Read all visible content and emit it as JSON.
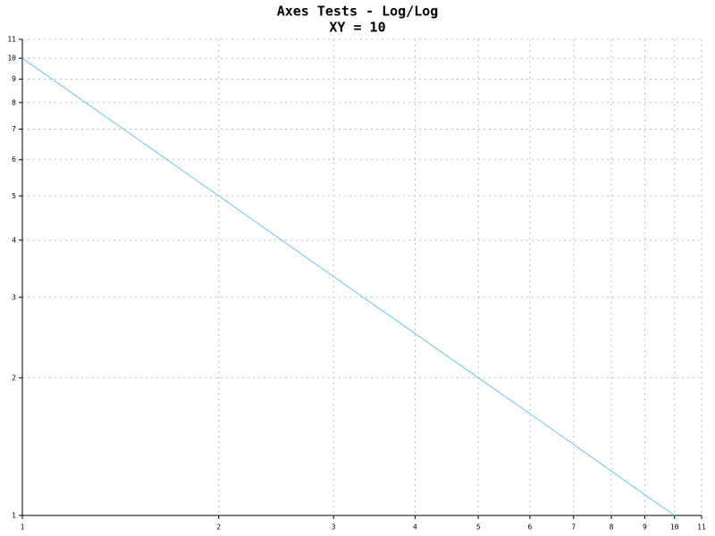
{
  "chart_data": {
    "type": "line",
    "title": "Axes Tests - Log/Log",
    "subtitle": "XY = 10",
    "x": [
      1,
      2,
      3,
      4,
      5,
      6,
      7,
      8,
      9,
      10
    ],
    "values": [
      10,
      5,
      3.33,
      2.5,
      2,
      1.67,
      1.43,
      1.25,
      1.11,
      1
    ],
    "color": "#6ec3ea",
    "xscale": "log",
    "yscale": "log",
    "xlim": [
      1,
      11
    ],
    "ylim": [
      1,
      11
    ],
    "xticks": [
      1,
      2,
      3,
      4,
      5,
      6,
      7,
      8,
      9,
      10,
      11
    ],
    "yticks": [
      1,
      2,
      3,
      4,
      5,
      6,
      7,
      8,
      9,
      10,
      11
    ],
    "grid": true
  }
}
